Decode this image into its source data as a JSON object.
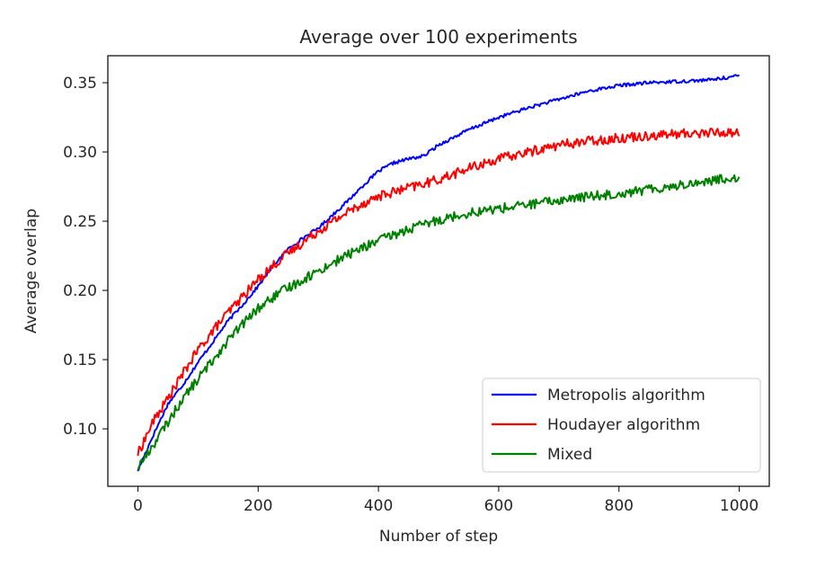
{
  "chart_data": {
    "type": "line",
    "title": "Average over 100 experiments",
    "xlabel": "Number of step",
    "ylabel": "Average overlap",
    "xlim": [
      -50,
      1050
    ],
    "ylim": [
      0.0585,
      0.3695
    ],
    "xticks": [
      0,
      200,
      400,
      600,
      800,
      1000
    ],
    "xtick_labels": [
      "0",
      "200",
      "400",
      "600",
      "800",
      "1000"
    ],
    "yticks": [
      0.1,
      0.15,
      0.2,
      0.25,
      0.3,
      0.35
    ],
    "ytick_labels": [
      "0.10",
      "0.15",
      "0.20",
      "0.25",
      "0.30",
      "0.35"
    ],
    "grid": false,
    "legend_position": "lower-right",
    "series": [
      {
        "name": "Metropolis algorithm",
        "color": "#0000ff",
        "noise": 0.0012,
        "x": [
          0,
          25,
          50,
          75,
          100,
          125,
          150,
          175,
          200,
          225,
          250,
          275,
          300,
          325,
          350,
          375,
          400,
          425,
          450,
          475,
          500,
          550,
          600,
          650,
          700,
          750,
          800,
          850,
          900,
          950,
          1000
        ],
        "y": [
          0.07,
          0.095,
          0.118,
          0.132,
          0.148,
          0.163,
          0.178,
          0.19,
          0.203,
          0.218,
          0.23,
          0.238,
          0.245,
          0.255,
          0.265,
          0.276,
          0.286,
          0.292,
          0.295,
          0.297,
          0.305,
          0.316,
          0.325,
          0.332,
          0.338,
          0.344,
          0.348,
          0.35,
          0.351,
          0.352,
          0.355
        ]
      },
      {
        "name": "Houdayer algorithm",
        "color": "#ff0000",
        "noise": 0.0035,
        "x": [
          0,
          25,
          50,
          75,
          100,
          125,
          150,
          175,
          200,
          225,
          250,
          275,
          300,
          325,
          350,
          375,
          400,
          450,
          500,
          550,
          600,
          650,
          700,
          750,
          800,
          850,
          900,
          950,
          1000
        ],
        "y": [
          0.082,
          0.105,
          0.122,
          0.14,
          0.157,
          0.171,
          0.184,
          0.196,
          0.208,
          0.218,
          0.227,
          0.235,
          0.243,
          0.25,
          0.257,
          0.263,
          0.268,
          0.274,
          0.28,
          0.288,
          0.295,
          0.3,
          0.305,
          0.308,
          0.31,
          0.312,
          0.313,
          0.314,
          0.314
        ]
      },
      {
        "name": "Mixed",
        "color": "#008000",
        "noise": 0.0035,
        "x": [
          0,
          25,
          50,
          75,
          100,
          125,
          150,
          175,
          200,
          225,
          250,
          275,
          300,
          325,
          350,
          375,
          400,
          450,
          500,
          550,
          600,
          650,
          700,
          750,
          800,
          850,
          900,
          950,
          1000
        ],
        "y": [
          0.072,
          0.088,
          0.105,
          0.122,
          0.136,
          0.15,
          0.164,
          0.176,
          0.187,
          0.195,
          0.202,
          0.208,
          0.214,
          0.22,
          0.226,
          0.231,
          0.236,
          0.244,
          0.251,
          0.256,
          0.259,
          0.262,
          0.265,
          0.268,
          0.27,
          0.273,
          0.276,
          0.279,
          0.282
        ]
      }
    ]
  }
}
